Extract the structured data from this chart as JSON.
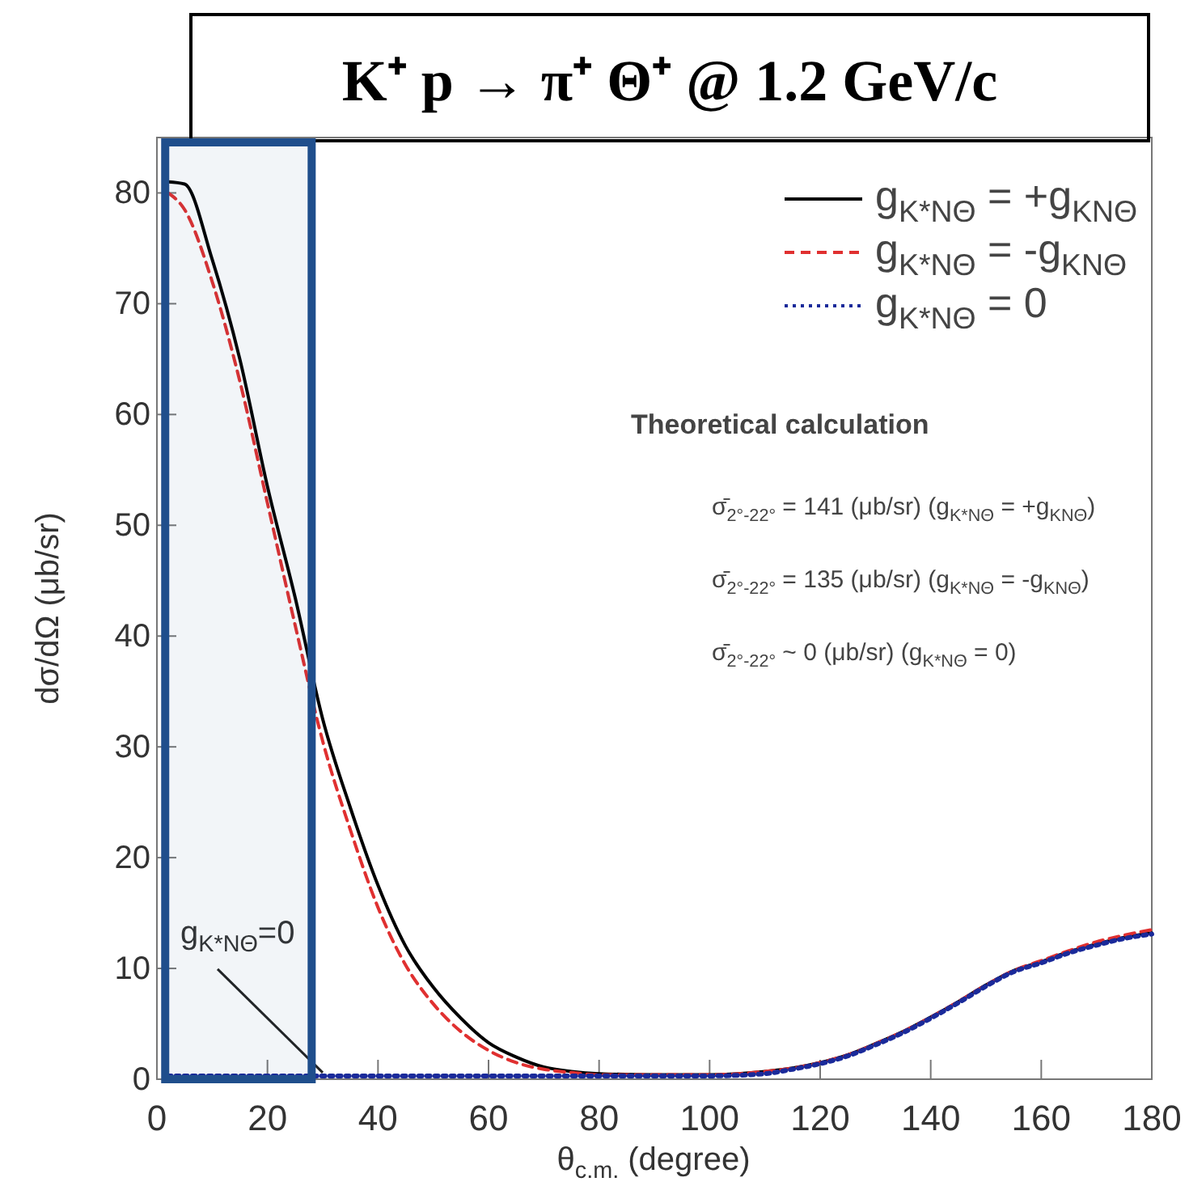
{
  "chart_data": {
    "type": "line",
    "title": "K⁺ p → π⁺  Θ⁺ @ 1.2 GeV/c",
    "xlabel": "θ$_{c.m.}$ (degree)",
    "ylabel": "dσ/dΩ (μb/sr)",
    "x": [
      2,
      5,
      10,
      15,
      20,
      25,
      30,
      35,
      40,
      45,
      50,
      55,
      60,
      65,
      70,
      75,
      80,
      90,
      100,
      110,
      115,
      120,
      125,
      130,
      135,
      140,
      145,
      150,
      155,
      160,
      165,
      170,
      175,
      180
    ],
    "series": [
      {
        "name": "g$_{K*NΘ}$ = +g$_{KNΘ}$",
        "color": "#000000",
        "line_style": "solid",
        "values": [
          81,
          80.8,
          74,
          65,
          53.5,
          43.5,
          32.5,
          24.5,
          17.5,
          12,
          8.3,
          5.5,
          3.3,
          2,
          1.1,
          0.7,
          0.5,
          0.4,
          0.4,
          0.7,
          1,
          1.5,
          2.2,
          3.2,
          4.3,
          5.6,
          7,
          8.5,
          9.8,
          10.6,
          11.5,
          12.2,
          12.8,
          13.2
        ]
      },
      {
        "name": "g$_{K*NΘ}$ = -g$_{KNΘ}$",
        "color": "#e03030",
        "line_style": "dashed",
        "values": [
          80,
          78.5,
          72,
          63,
          52,
          41,
          30.5,
          22.5,
          15.5,
          10.3,
          6.8,
          4.3,
          2.6,
          1.5,
          0.9,
          0.6,
          0.4,
          0.4,
          0.4,
          0.7,
          1,
          1.5,
          2.2,
          3.2,
          4.3,
          5.6,
          7,
          8.5,
          9.8,
          10.7,
          11.6,
          12.4,
          13,
          13.5
        ]
      },
      {
        "name": "g$_{K*NΘ}$ = 0",
        "color": "#1a2a9a",
        "line_style": "dotted",
        "values": [
          0.3,
          0.3,
          0.3,
          0.3,
          0.3,
          0.3,
          0.3,
          0.3,
          0.3,
          0.3,
          0.3,
          0.3,
          0.3,
          0.3,
          0.3,
          0.3,
          0.3,
          0.3,
          0.3,
          0.5,
          0.9,
          1.4,
          2.1,
          3.1,
          4.2,
          5.5,
          6.9,
          8.4,
          9.7,
          10.5,
          11.4,
          12.1,
          12.7,
          13.1
        ]
      }
    ],
    "xlim": [
      0,
      180
    ],
    "xticks": [
      0,
      20,
      40,
      60,
      80,
      100,
      120,
      140,
      160,
      180
    ],
    "ylim": [
      0,
      85
    ],
    "yticks": [
      0,
      10,
      20,
      30,
      40,
      50,
      60,
      70,
      80
    ],
    "legend": "top right",
    "grid": false,
    "bands": [
      {
        "axis": "x",
        "from": 1.5,
        "to": 28,
        "color": "#1f4e8c"
      }
    ],
    "annotations": [
      "Theoretical calculation",
      "σ̄$_{2°-22°}$ = 141 (μb/sr) (g$_{K*NΘ}$ = +g$_{KNΘ}$)",
      "σ̄$_{2°-22°}$ = 135 (μb/sr) (g$_{K*NΘ}$ = -g$_{KNΘ}$)",
      "σ̄$_{2°-22°}$ ~ 0 (μb/sr) (g$_{K*NΘ}$ = 0)",
      {
        "text": "g$_{K*NΘ}$=0",
        "x": 30,
        "y": 0.3
      }
    ]
  }
}
